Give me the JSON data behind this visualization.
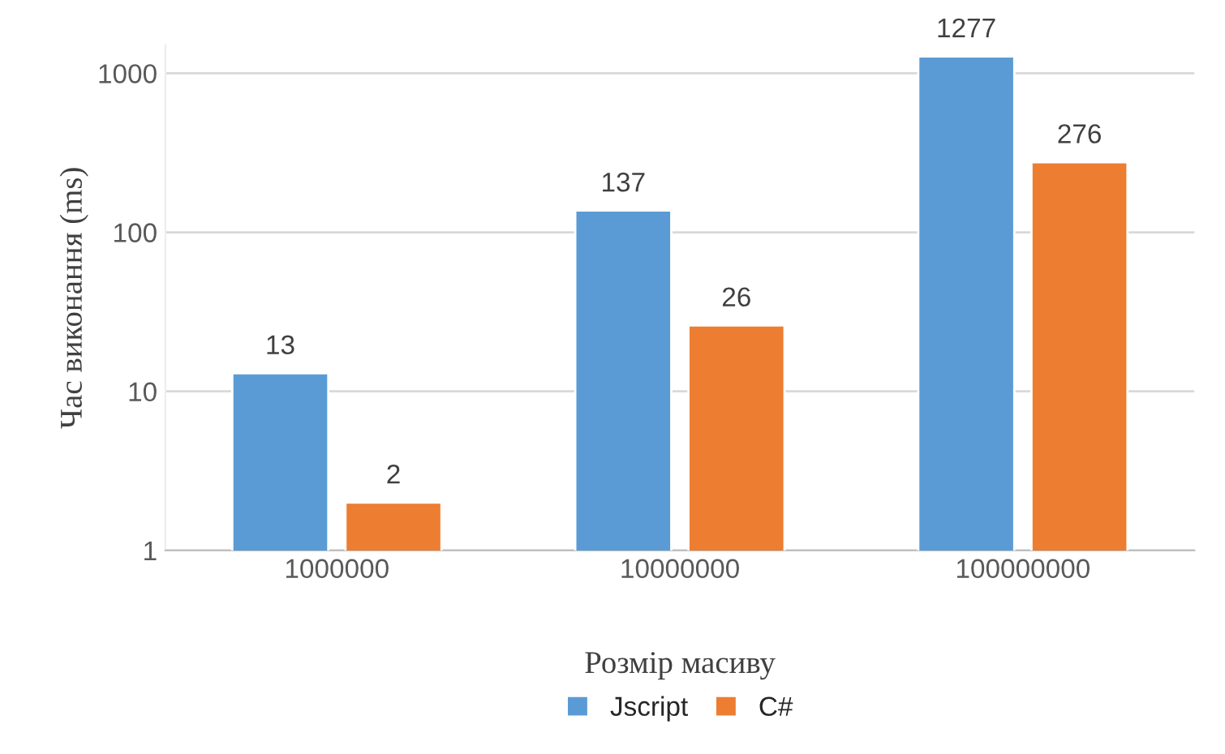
{
  "chart_data": {
    "type": "bar",
    "xlabel": "Розмір масиву",
    "ylabel": "Час виконання (ms)",
    "categories": [
      "1000000",
      "10000000",
      "100000000"
    ],
    "series": [
      {
        "name": "Jscript",
        "color": "#5b9bd5",
        "values": [
          13,
          137,
          1277
        ]
      },
      {
        "name": "C#",
        "color": "#ed7d31",
        "values": [
          2,
          26,
          276
        ]
      }
    ],
    "log": "y",
    "ylim": [
      1,
      1500
    ],
    "yticks": [
      1,
      10,
      100,
      1000
    ],
    "grid": "y",
    "data_labels": true,
    "legend": "bottom"
  }
}
